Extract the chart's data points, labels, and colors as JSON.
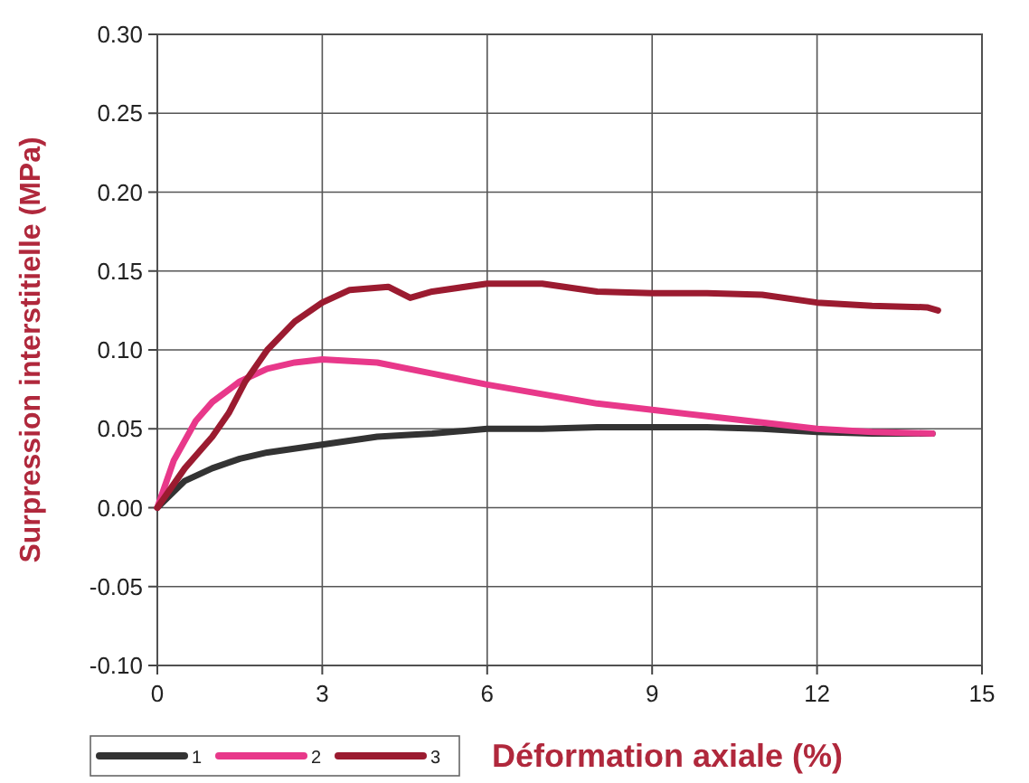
{
  "chart_data": {
    "type": "line",
    "xlabel": "Déformation axiale (%)",
    "ylabel": "Surpression interstitielle (MPa)",
    "xlim": [
      0,
      15
    ],
    "xticks": [
      0,
      3,
      6,
      9,
      12,
      15
    ],
    "ylim": [
      -0.1,
      0.3
    ],
    "yticks": [
      {
        "value": -0.1,
        "label": "-0.10"
      },
      {
        "value": -0.05,
        "label": "-0.05"
      },
      {
        "value": 0,
        "label": "0.00"
      },
      {
        "value": 0.05,
        "label": "0.05"
      },
      {
        "value": 0.1,
        "label": "0.10"
      },
      {
        "value": 0.15,
        "label": "0.15"
      },
      {
        "value": 0.2,
        "label": "0.20"
      },
      {
        "value": 0.25,
        "label": "0.25"
      },
      {
        "value": 0.3,
        "label": "0.30"
      }
    ],
    "grid": true,
    "legend": "bottom",
    "marker": "none",
    "line_style": "solid",
    "series": [
      {
        "name": "1",
        "color": "#333333",
        "x": [
          0,
          0.5,
          1,
          1.5,
          2,
          3,
          4,
          5,
          6,
          7,
          8,
          9,
          10,
          11,
          12,
          13,
          14.1
        ],
        "values": [
          0,
          0.017,
          0.025,
          0.031,
          0.035,
          0.04,
          0.045,
          0.047,
          0.05,
          0.05,
          0.051,
          0.051,
          0.051,
          0.05,
          0.048,
          0.047,
          0.047
        ]
      },
      {
        "name": "2",
        "color": "#e8388a",
        "x": [
          0,
          0.3,
          0.7,
          1,
          1.5,
          2,
          2.5,
          3,
          3.5,
          4,
          5,
          6,
          7,
          8,
          9,
          10,
          11,
          12,
          13,
          14.1
        ],
        "values": [
          0,
          0.03,
          0.055,
          0.067,
          0.08,
          0.088,
          0.092,
          0.094,
          0.093,
          0.092,
          0.085,
          0.078,
          0.072,
          0.066,
          0.062,
          0.058,
          0.054,
          0.05,
          0.048,
          0.047
        ]
      },
      {
        "name": "3",
        "color": "#9b1b30",
        "x": [
          0,
          0.5,
          1,
          1.3,
          1.6,
          2,
          2.5,
          3,
          3.5,
          4.2,
          4.6,
          5,
          6,
          7,
          8,
          9,
          10,
          11,
          12,
          13,
          14,
          14.2
        ],
        "values": [
          0,
          0.025,
          0.045,
          0.06,
          0.08,
          0.1,
          0.118,
          0.13,
          0.138,
          0.14,
          0.133,
          0.137,
          0.142,
          0.142,
          0.137,
          0.136,
          0.136,
          0.135,
          0.13,
          0.128,
          0.127,
          0.125
        ]
      }
    ]
  }
}
